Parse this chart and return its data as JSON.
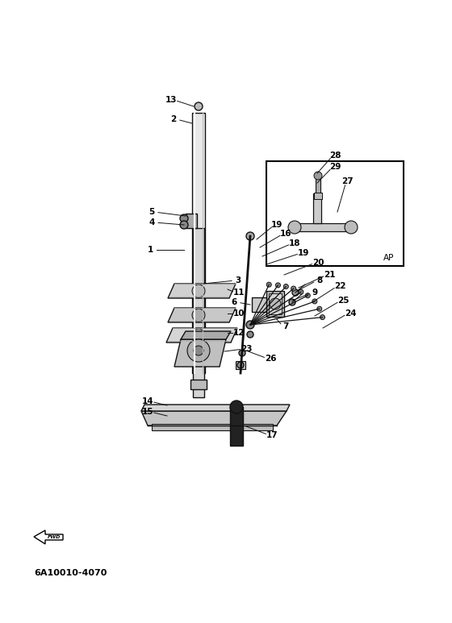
{
  "bg_color": "#ffffff",
  "fig_width": 5.6,
  "fig_height": 7.73,
  "dpi": 100,
  "drawing_color": "#111111",
  "bottom_text": "6A10010-4070"
}
